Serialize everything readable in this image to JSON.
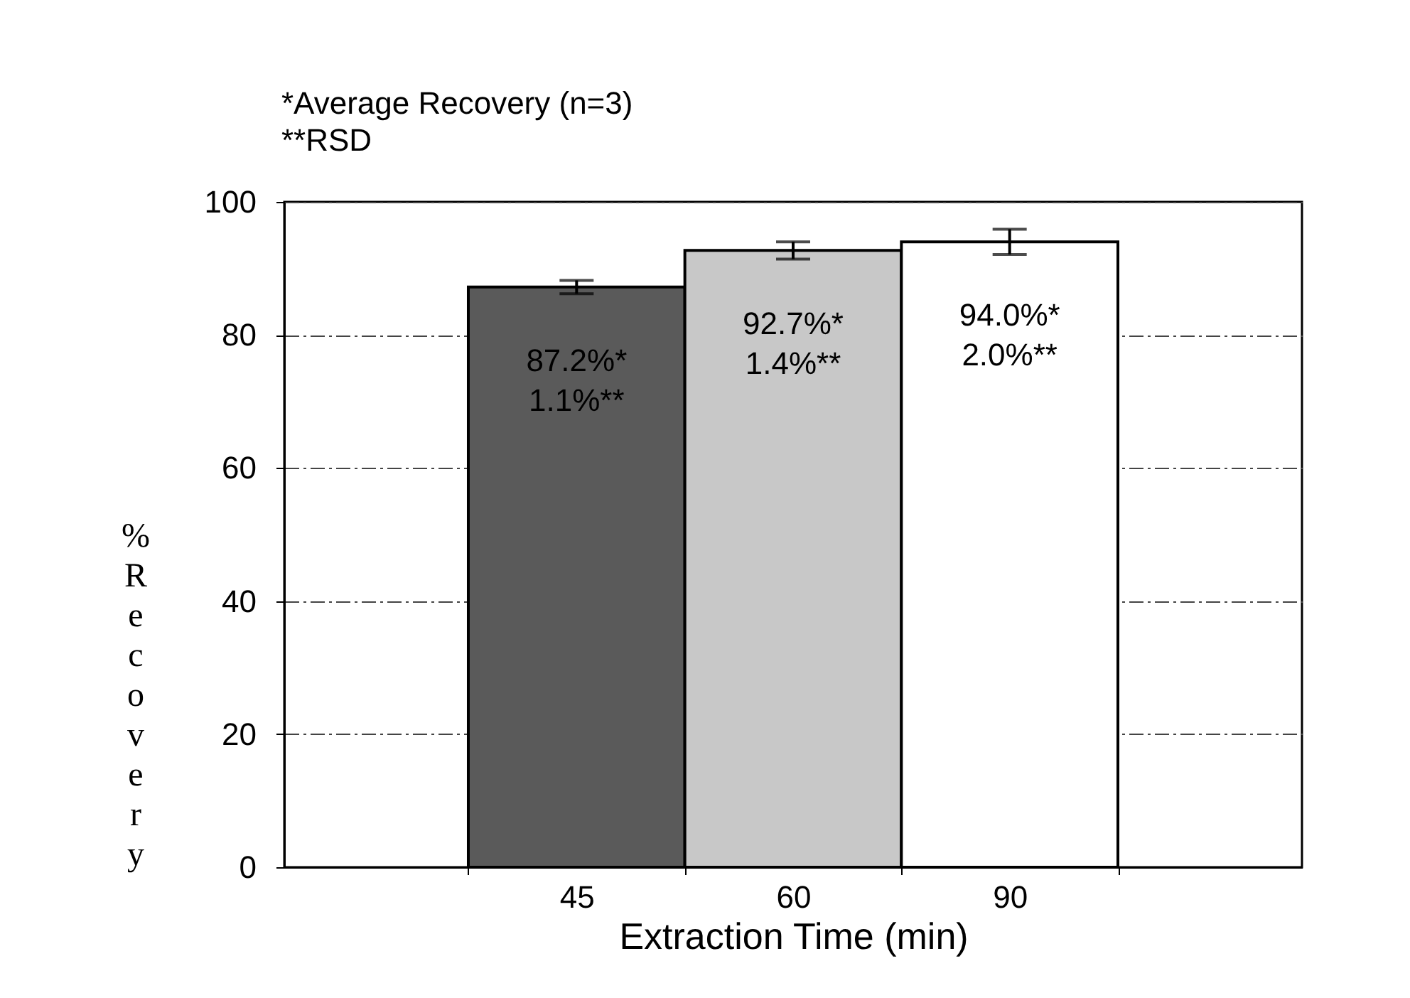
{
  "chart_data": {
    "type": "bar",
    "xlabel": "Extraction Time (min)",
    "ylabel": "% Recovery",
    "categories": [
      "45",
      "60",
      "90"
    ],
    "values": [
      87.2,
      92.7,
      94.0
    ],
    "colors": [
      "#5a5a5a",
      "#c8c8c8",
      "#ffffff"
    ],
    "errors": [
      1.0,
      1.3,
      1.9
    ],
    "value_labels": [
      "87.2%*",
      "92.7%*",
      "94.0%*"
    ],
    "annotations": [
      "*Average Recovery (n=3)",
      "**RSD",
      "1.1%**",
      "1.4%**",
      "2.0%**"
    ],
    "ylim": [
      0,
      100
    ],
    "yticks": [
      0,
      20,
      40,
      60,
      80,
      100
    ],
    "grid": "y"
  }
}
